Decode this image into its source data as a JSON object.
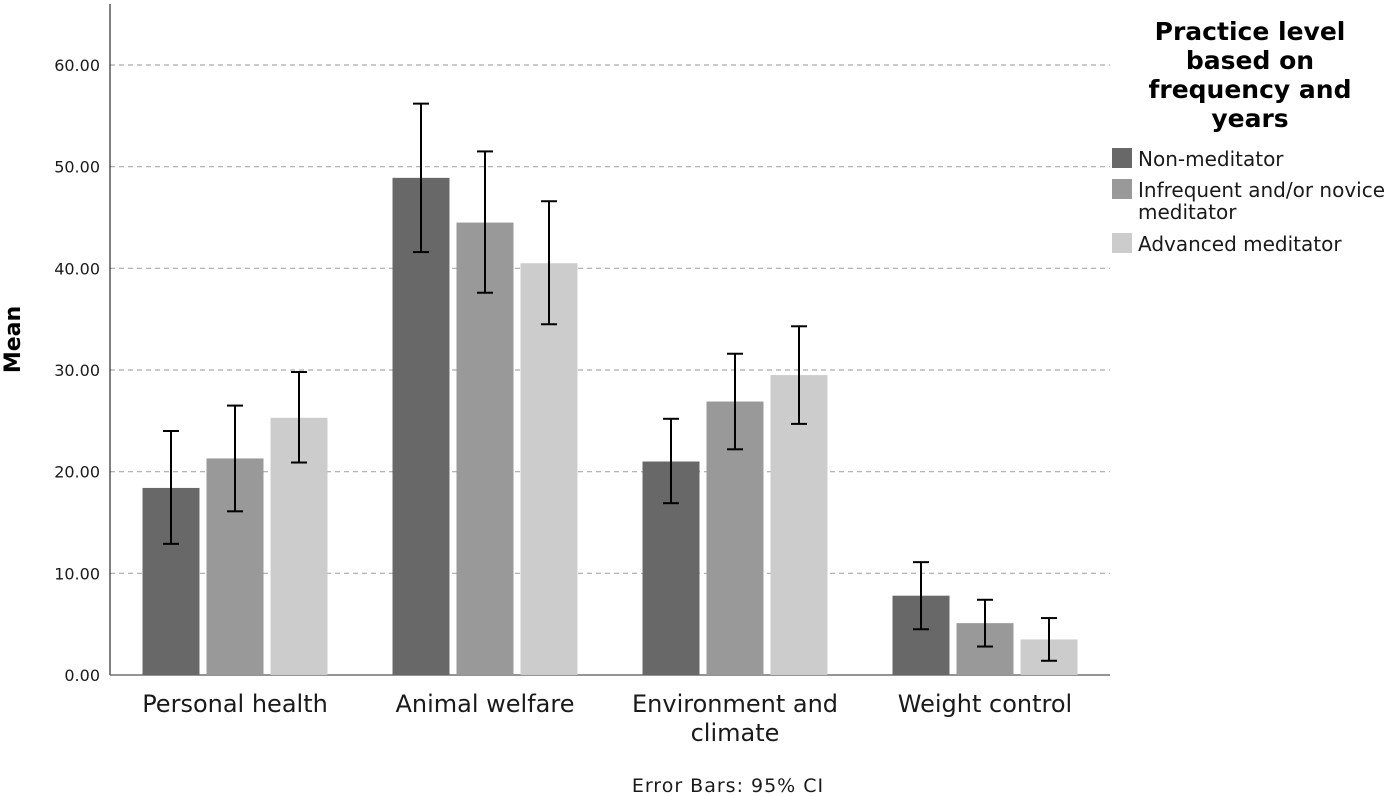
{
  "chart_data": {
    "type": "bar",
    "title": "",
    "xlabel": "",
    "ylabel": "Mean",
    "ylim": [
      0,
      66
    ],
    "yticks": [
      "0.00",
      "10.00",
      "20.00",
      "30.00",
      "40.00",
      "50.00",
      "60.00"
    ],
    "ytick_values": [
      0,
      10,
      20,
      30,
      40,
      50,
      60
    ],
    "grid": true,
    "categories": [
      [
        "Personal health"
      ],
      [
        "Animal welfare"
      ],
      [
        "Environment and",
        "climate"
      ],
      [
        "Weight control"
      ]
    ],
    "series": [
      {
        "name": "Non-meditator",
        "name_lines": [
          "Non-meditator"
        ],
        "color": "#686868",
        "values": [
          18.4,
          48.9,
          21.0,
          7.8
        ],
        "ci_low": [
          12.9,
          41.6,
          16.9,
          4.5
        ],
        "ci_high": [
          24.0,
          56.2,
          25.2,
          11.1
        ]
      },
      {
        "name": "Infrequent and/or novice meditator",
        "name_lines": [
          "Infrequent and/or novice",
          "meditator"
        ],
        "color": "#999999",
        "values": [
          21.3,
          44.5,
          26.9,
          5.1
        ],
        "ci_low": [
          16.1,
          37.6,
          22.2,
          2.8
        ],
        "ci_high": [
          26.5,
          51.5,
          31.6,
          7.4
        ]
      },
      {
        "name": "Advanced meditator",
        "name_lines": [
          "Advanced meditator"
        ],
        "color": "#cccccc",
        "values": [
          25.3,
          40.5,
          29.5,
          3.5
        ],
        "ci_low": [
          20.9,
          34.5,
          24.7,
          1.4
        ],
        "ci_high": [
          29.8,
          46.6,
          34.3,
          5.6
        ]
      }
    ],
    "legend": {
      "title_lines": [
        "Practice level",
        "based on",
        "frequency and",
        "years"
      ],
      "position": "top-right"
    },
    "footnote": "Error Bars: 95% CI"
  }
}
